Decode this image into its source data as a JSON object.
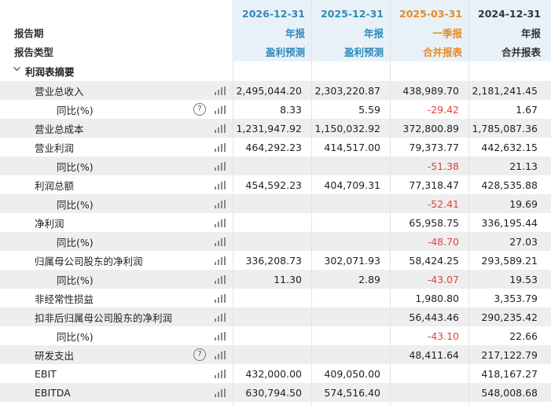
{
  "header": {
    "dates": [
      "2026-12-31",
      "2025-12-31",
      "2025-03-31",
      "2024-12-31"
    ],
    "date_colors": [
      "#2c8ab8",
      "#2c8ab8",
      "#e88a23",
      "#333333"
    ],
    "report_period_label": "报告期",
    "report_type_label": "报告类型",
    "periods": [
      "年报",
      "年报",
      "一季报",
      "年报"
    ],
    "types": [
      "盈利预测",
      "盈利预测",
      "合并报表",
      "合并报表"
    ]
  },
  "section": {
    "title": "利润表摘要",
    "chevron_icon": "chevron-down-icon"
  },
  "rows": [
    {
      "label": "营业总收入",
      "level": 1,
      "help": false,
      "values": [
        "2,495,044.20",
        "2,303,220.87",
        "438,989.70",
        "2,181,241.45"
      ],
      "neg": [
        false,
        false,
        false,
        false
      ]
    },
    {
      "label": "同比(%)",
      "level": 2,
      "help": true,
      "values": [
        "8.33",
        "5.59",
        "-29.42",
        "1.67"
      ],
      "neg": [
        false,
        false,
        true,
        false
      ]
    },
    {
      "label": "营业总成本",
      "level": 1,
      "help": false,
      "values": [
        "1,231,947.92",
        "1,150,032.92",
        "372,800.89",
        "1,785,087.36"
      ],
      "neg": [
        false,
        false,
        false,
        false
      ]
    },
    {
      "label": "营业利润",
      "level": 1,
      "help": false,
      "values": [
        "464,292.23",
        "414,517.00",
        "79,373.77",
        "442,632.15"
      ],
      "neg": [
        false,
        false,
        false,
        false
      ]
    },
    {
      "label": "同比(%)",
      "level": 2,
      "help": false,
      "values": [
        "",
        "",
        "-51.38",
        "21.13"
      ],
      "neg": [
        false,
        false,
        true,
        false
      ]
    },
    {
      "label": "利润总额",
      "level": 1,
      "help": false,
      "values": [
        "454,592.23",
        "404,709.31",
        "77,318.47",
        "428,535.88"
      ],
      "neg": [
        false,
        false,
        false,
        false
      ]
    },
    {
      "label": "同比(%)",
      "level": 2,
      "help": false,
      "values": [
        "",
        "",
        "-52.41",
        "19.69"
      ],
      "neg": [
        false,
        false,
        true,
        false
      ]
    },
    {
      "label": "净利润",
      "level": 1,
      "help": false,
      "values": [
        "",
        "",
        "65,958.75",
        "336,195.44"
      ],
      "neg": [
        false,
        false,
        false,
        false
      ]
    },
    {
      "label": "同比(%)",
      "level": 2,
      "help": false,
      "values": [
        "",
        "",
        "-48.70",
        "27.03"
      ],
      "neg": [
        false,
        false,
        true,
        false
      ]
    },
    {
      "label": "归属母公司股东的净利润",
      "level": 1,
      "help": false,
      "values": [
        "336,208.73",
        "302,071.93",
        "58,424.25",
        "293,589.21"
      ],
      "neg": [
        false,
        false,
        false,
        false
      ]
    },
    {
      "label": "同比(%)",
      "level": 2,
      "help": false,
      "values": [
        "11.30",
        "2.89",
        "-43.07",
        "19.53"
      ],
      "neg": [
        false,
        false,
        true,
        false
      ]
    },
    {
      "label": "非经常性损益",
      "level": 1,
      "help": false,
      "values": [
        "",
        "",
        "1,980.80",
        "3,353.79"
      ],
      "neg": [
        false,
        false,
        false,
        false
      ]
    },
    {
      "label": "扣非后归属母公司股东的净利润",
      "level": 1,
      "help": false,
      "values": [
        "",
        "",
        "56,443.46",
        "290,235.42"
      ],
      "neg": [
        false,
        false,
        false,
        false
      ]
    },
    {
      "label": "同比(%)",
      "level": 2,
      "help": false,
      "values": [
        "",
        "",
        "-43.10",
        "22.66"
      ],
      "neg": [
        false,
        false,
        true,
        false
      ]
    },
    {
      "label": "研发支出",
      "level": 1,
      "help": true,
      "values": [
        "",
        "",
        "48,411.64",
        "217,122.79"
      ],
      "neg": [
        false,
        false,
        false,
        false
      ]
    },
    {
      "label": "EBIT",
      "level": 1,
      "help": false,
      "values": [
        "432,000.00",
        "409,050.00",
        "",
        "418,167.27"
      ],
      "neg": [
        false,
        false,
        false,
        false
      ]
    },
    {
      "label": "EBITDA",
      "level": 1,
      "help": false,
      "values": [
        "630,794.50",
        "574,516.40",
        "",
        "548,008.68"
      ],
      "neg": [
        false,
        false,
        false,
        false
      ]
    }
  ],
  "icons": {
    "row_chart_icon": "bar-chart-icon",
    "help_icon": "help-circle-icon",
    "help_glyph": "?"
  },
  "colors": {
    "negative": "#e0443a",
    "header_bg": "#e9f1f8",
    "shade": "#eeeeee"
  }
}
